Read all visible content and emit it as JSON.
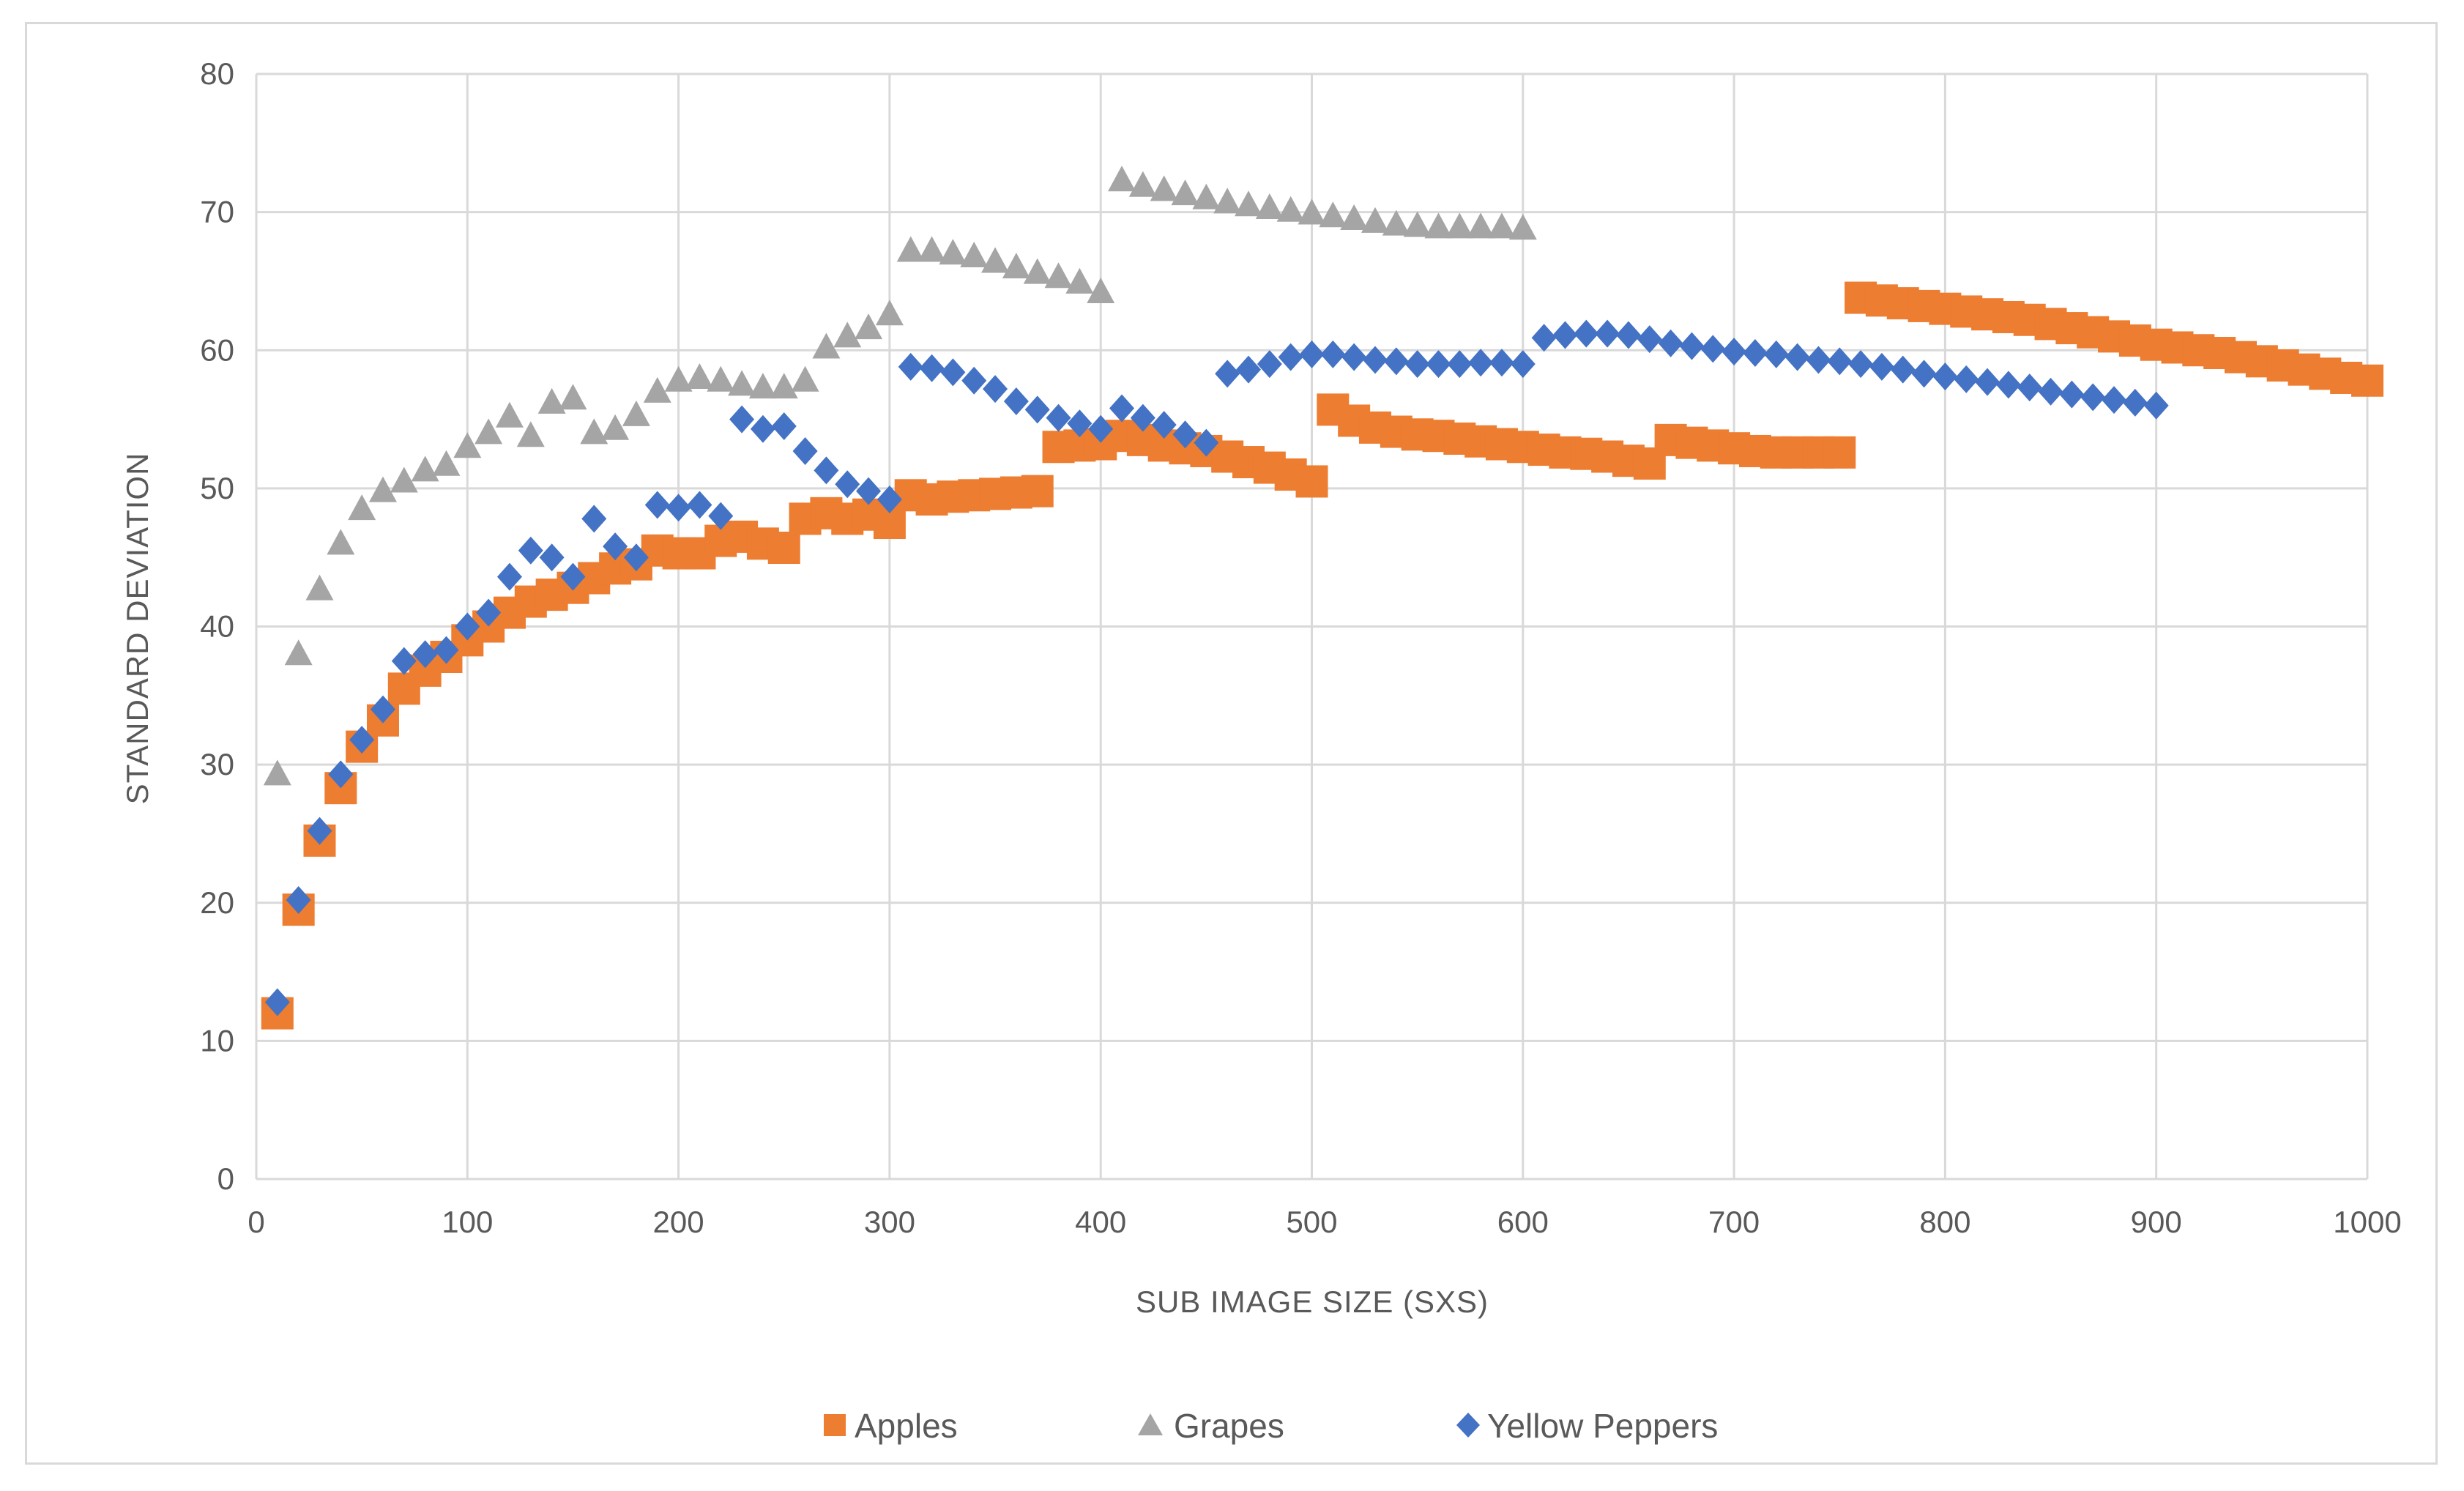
{
  "chart_data": {
    "type": "scatter",
    "title": "",
    "xlabel": "SUB IMAGE SIZE (SXS)",
    "ylabel": "STANDARD DEVIATION",
    "xlim": [
      0,
      1000
    ],
    "ylim": [
      0,
      80
    ],
    "xticks": [
      0,
      100,
      200,
      300,
      400,
      500,
      600,
      700,
      800,
      900,
      1000
    ],
    "yticks": [
      0,
      10,
      20,
      30,
      40,
      50,
      60,
      70,
      80
    ],
    "grid": true,
    "legend_position": "bottom",
    "series": [
      {
        "name": "Apples",
        "marker": "square",
        "color": "#ED7D31",
        "points": [
          [
            10,
            12
          ],
          [
            20,
            19.5
          ],
          [
            30,
            24.5
          ],
          [
            40,
            28.3
          ],
          [
            50,
            31.3
          ],
          [
            60,
            33.2
          ],
          [
            70,
            35.5
          ],
          [
            80,
            36.8
          ],
          [
            90,
            37.8
          ],
          [
            100,
            39
          ],
          [
            110,
            40
          ],
          [
            120,
            41
          ],
          [
            130,
            41.8
          ],
          [
            140,
            42.3
          ],
          [
            150,
            42.8
          ],
          [
            160,
            43.5
          ],
          [
            170,
            44.2
          ],
          [
            180,
            44.5
          ],
          [
            190,
            45.5
          ],
          [
            200,
            45.3
          ],
          [
            210,
            45.3
          ],
          [
            220,
            46.2
          ],
          [
            230,
            46.5
          ],
          [
            240,
            46
          ],
          [
            250,
            45.7
          ],
          [
            260,
            47.8
          ],
          [
            270,
            48.2
          ],
          [
            280,
            47.8
          ],
          [
            290,
            48.1
          ],
          [
            300,
            47.5
          ],
          [
            310,
            49.5
          ],
          [
            320,
            49.2
          ],
          [
            330,
            49.4
          ],
          [
            340,
            49.5
          ],
          [
            350,
            49.6
          ],
          [
            360,
            49.7
          ],
          [
            370,
            49.8
          ],
          [
            380,
            53
          ],
          [
            390,
            53.1
          ],
          [
            400,
            53.2
          ],
          [
            410,
            53.8
          ],
          [
            420,
            53.5
          ],
          [
            430,
            53.1
          ],
          [
            440,
            52.9
          ],
          [
            450,
            52.7
          ],
          [
            460,
            52.3
          ],
          [
            470,
            51.9
          ],
          [
            480,
            51.5
          ],
          [
            490,
            51
          ],
          [
            500,
            50.5
          ],
          [
            510,
            55.7
          ],
          [
            520,
            54.9
          ],
          [
            530,
            54.4
          ],
          [
            540,
            54.1
          ],
          [
            550,
            53.9
          ],
          [
            560,
            53.8
          ],
          [
            570,
            53.6
          ],
          [
            580,
            53.4
          ],
          [
            590,
            53.2
          ],
          [
            600,
            53
          ],
          [
            610,
            52.8
          ],
          [
            620,
            52.6
          ],
          [
            630,
            52.5
          ],
          [
            640,
            52.3
          ],
          [
            650,
            52
          ],
          [
            660,
            51.8
          ],
          [
            670,
            53.5
          ],
          [
            680,
            53.3
          ],
          [
            690,
            53.1
          ],
          [
            700,
            52.9
          ],
          [
            710,
            52.7
          ],
          [
            720,
            52.6
          ],
          [
            730,
            52.6
          ],
          [
            740,
            52.6
          ],
          [
            750,
            52.6
          ],
          [
            760,
            63.8
          ],
          [
            770,
            63.6
          ],
          [
            780,
            63.4
          ],
          [
            790,
            63.2
          ],
          [
            800,
            63
          ],
          [
            810,
            62.8
          ],
          [
            820,
            62.6
          ],
          [
            830,
            62.4
          ],
          [
            840,
            62.2
          ],
          [
            850,
            61.9
          ],
          [
            860,
            61.6
          ],
          [
            870,
            61.3
          ],
          [
            880,
            61
          ],
          [
            890,
            60.7
          ],
          [
            900,
            60.4
          ],
          [
            910,
            60.2
          ],
          [
            920,
            60
          ],
          [
            930,
            59.8
          ],
          [
            940,
            59.5
          ],
          [
            950,
            59.2
          ],
          [
            960,
            58.9
          ],
          [
            970,
            58.6
          ],
          [
            980,
            58.3
          ],
          [
            990,
            58
          ],
          [
            1000,
            57.8
          ]
        ]
      },
      {
        "name": "Grapes",
        "marker": "triangle",
        "color": "#A5A5A5",
        "points": [
          [
            10,
            29.3
          ],
          [
            20,
            38
          ],
          [
            30,
            42.7
          ],
          [
            40,
            46
          ],
          [
            50,
            48.5
          ],
          [
            60,
            49.8
          ],
          [
            70,
            50.5
          ],
          [
            80,
            51.3
          ],
          [
            90,
            51.7
          ],
          [
            100,
            53
          ],
          [
            110,
            54
          ],
          [
            120,
            55.2
          ],
          [
            130,
            53.8
          ],
          [
            140,
            56.2
          ],
          [
            150,
            56.5
          ],
          [
            160,
            54
          ],
          [
            170,
            54.3
          ],
          [
            180,
            55.3
          ],
          [
            190,
            57
          ],
          [
            200,
            57.8
          ],
          [
            210,
            58
          ],
          [
            220,
            57.8
          ],
          [
            230,
            57.5
          ],
          [
            240,
            57.3
          ],
          [
            250,
            57.3
          ],
          [
            260,
            57.8
          ],
          [
            270,
            60.2
          ],
          [
            280,
            61
          ],
          [
            290,
            61.6
          ],
          [
            300,
            62.6
          ],
          [
            310,
            67.2
          ],
          [
            320,
            67.2
          ],
          [
            330,
            67
          ],
          [
            340,
            66.8
          ],
          [
            350,
            66.4
          ],
          [
            360,
            66
          ],
          [
            370,
            65.6
          ],
          [
            380,
            65.3
          ],
          [
            390,
            64.9
          ],
          [
            400,
            64.2
          ],
          [
            410,
            72.3
          ],
          [
            420,
            71.9
          ],
          [
            430,
            71.6
          ],
          [
            440,
            71.3
          ],
          [
            450,
            71
          ],
          [
            460,
            70.7
          ],
          [
            470,
            70.5
          ],
          [
            480,
            70.3
          ],
          [
            490,
            70.1
          ],
          [
            500,
            69.9
          ],
          [
            510,
            69.7
          ],
          [
            520,
            69.5
          ],
          [
            530,
            69.3
          ],
          [
            540,
            69.1
          ],
          [
            550,
            69
          ],
          [
            560,
            68.9
          ],
          [
            570,
            68.9
          ],
          [
            580,
            68.9
          ],
          [
            590,
            68.9
          ],
          [
            600,
            68.8
          ]
        ]
      },
      {
        "name": "Yellow Peppers",
        "marker": "diamond",
        "color": "#4472C4",
        "points": [
          [
            10,
            12.8
          ],
          [
            20,
            20.2
          ],
          [
            30,
            25.2
          ],
          [
            40,
            29.3
          ],
          [
            50,
            31.8
          ],
          [
            60,
            34
          ],
          [
            70,
            37.5
          ],
          [
            80,
            38
          ],
          [
            90,
            38.3
          ],
          [
            100,
            40
          ],
          [
            110,
            41
          ],
          [
            120,
            43.6
          ],
          [
            130,
            45.5
          ],
          [
            140,
            45
          ],
          [
            150,
            43.6
          ],
          [
            160,
            47.8
          ],
          [
            170,
            45.8
          ],
          [
            180,
            45
          ],
          [
            190,
            48.8
          ],
          [
            200,
            48.6
          ],
          [
            210,
            48.8
          ],
          [
            220,
            48
          ],
          [
            230,
            55
          ],
          [
            240,
            54.3
          ],
          [
            250,
            54.5
          ],
          [
            260,
            52.7
          ],
          [
            270,
            51.3
          ],
          [
            280,
            50.3
          ],
          [
            290,
            49.8
          ],
          [
            300,
            49.2
          ],
          [
            310,
            58.8
          ],
          [
            320,
            58.7
          ],
          [
            330,
            58.4
          ],
          [
            340,
            57.8
          ],
          [
            350,
            57.2
          ],
          [
            360,
            56.3
          ],
          [
            370,
            55.7
          ],
          [
            380,
            55.1
          ],
          [
            390,
            54.7
          ],
          [
            400,
            54.3
          ],
          [
            410,
            55.8
          ],
          [
            420,
            55.1
          ],
          [
            430,
            54.6
          ],
          [
            440,
            53.9
          ],
          [
            450,
            53.3
          ],
          [
            460,
            58.3
          ],
          [
            470,
            58.6
          ],
          [
            480,
            59
          ],
          [
            490,
            59.5
          ],
          [
            500,
            59.7
          ],
          [
            510,
            59.7
          ],
          [
            520,
            59.5
          ],
          [
            530,
            59.3
          ],
          [
            540,
            59.2
          ],
          [
            550,
            59
          ],
          [
            560,
            59
          ],
          [
            570,
            59
          ],
          [
            580,
            59.1
          ],
          [
            590,
            59.1
          ],
          [
            600,
            59
          ],
          [
            610,
            60.9
          ],
          [
            620,
            61.1
          ],
          [
            630,
            61.2
          ],
          [
            640,
            61.2
          ],
          [
            650,
            61.1
          ],
          [
            660,
            60.8
          ],
          [
            670,
            60.5
          ],
          [
            680,
            60.3
          ],
          [
            690,
            60.1
          ],
          [
            700,
            59.9
          ],
          [
            710,
            59.8
          ],
          [
            720,
            59.7
          ],
          [
            730,
            59.5
          ],
          [
            740,
            59.3
          ],
          [
            750,
            59.2
          ],
          [
            760,
            59
          ],
          [
            770,
            58.8
          ],
          [
            780,
            58.6
          ],
          [
            790,
            58.3
          ],
          [
            800,
            58.1
          ],
          [
            810,
            57.9
          ],
          [
            820,
            57.7
          ],
          [
            830,
            57.5
          ],
          [
            840,
            57.3
          ],
          [
            850,
            57
          ],
          [
            860,
            56.8
          ],
          [
            870,
            56.6
          ],
          [
            880,
            56.4
          ],
          [
            890,
            56.2
          ],
          [
            900,
            56
          ]
        ]
      }
    ]
  }
}
